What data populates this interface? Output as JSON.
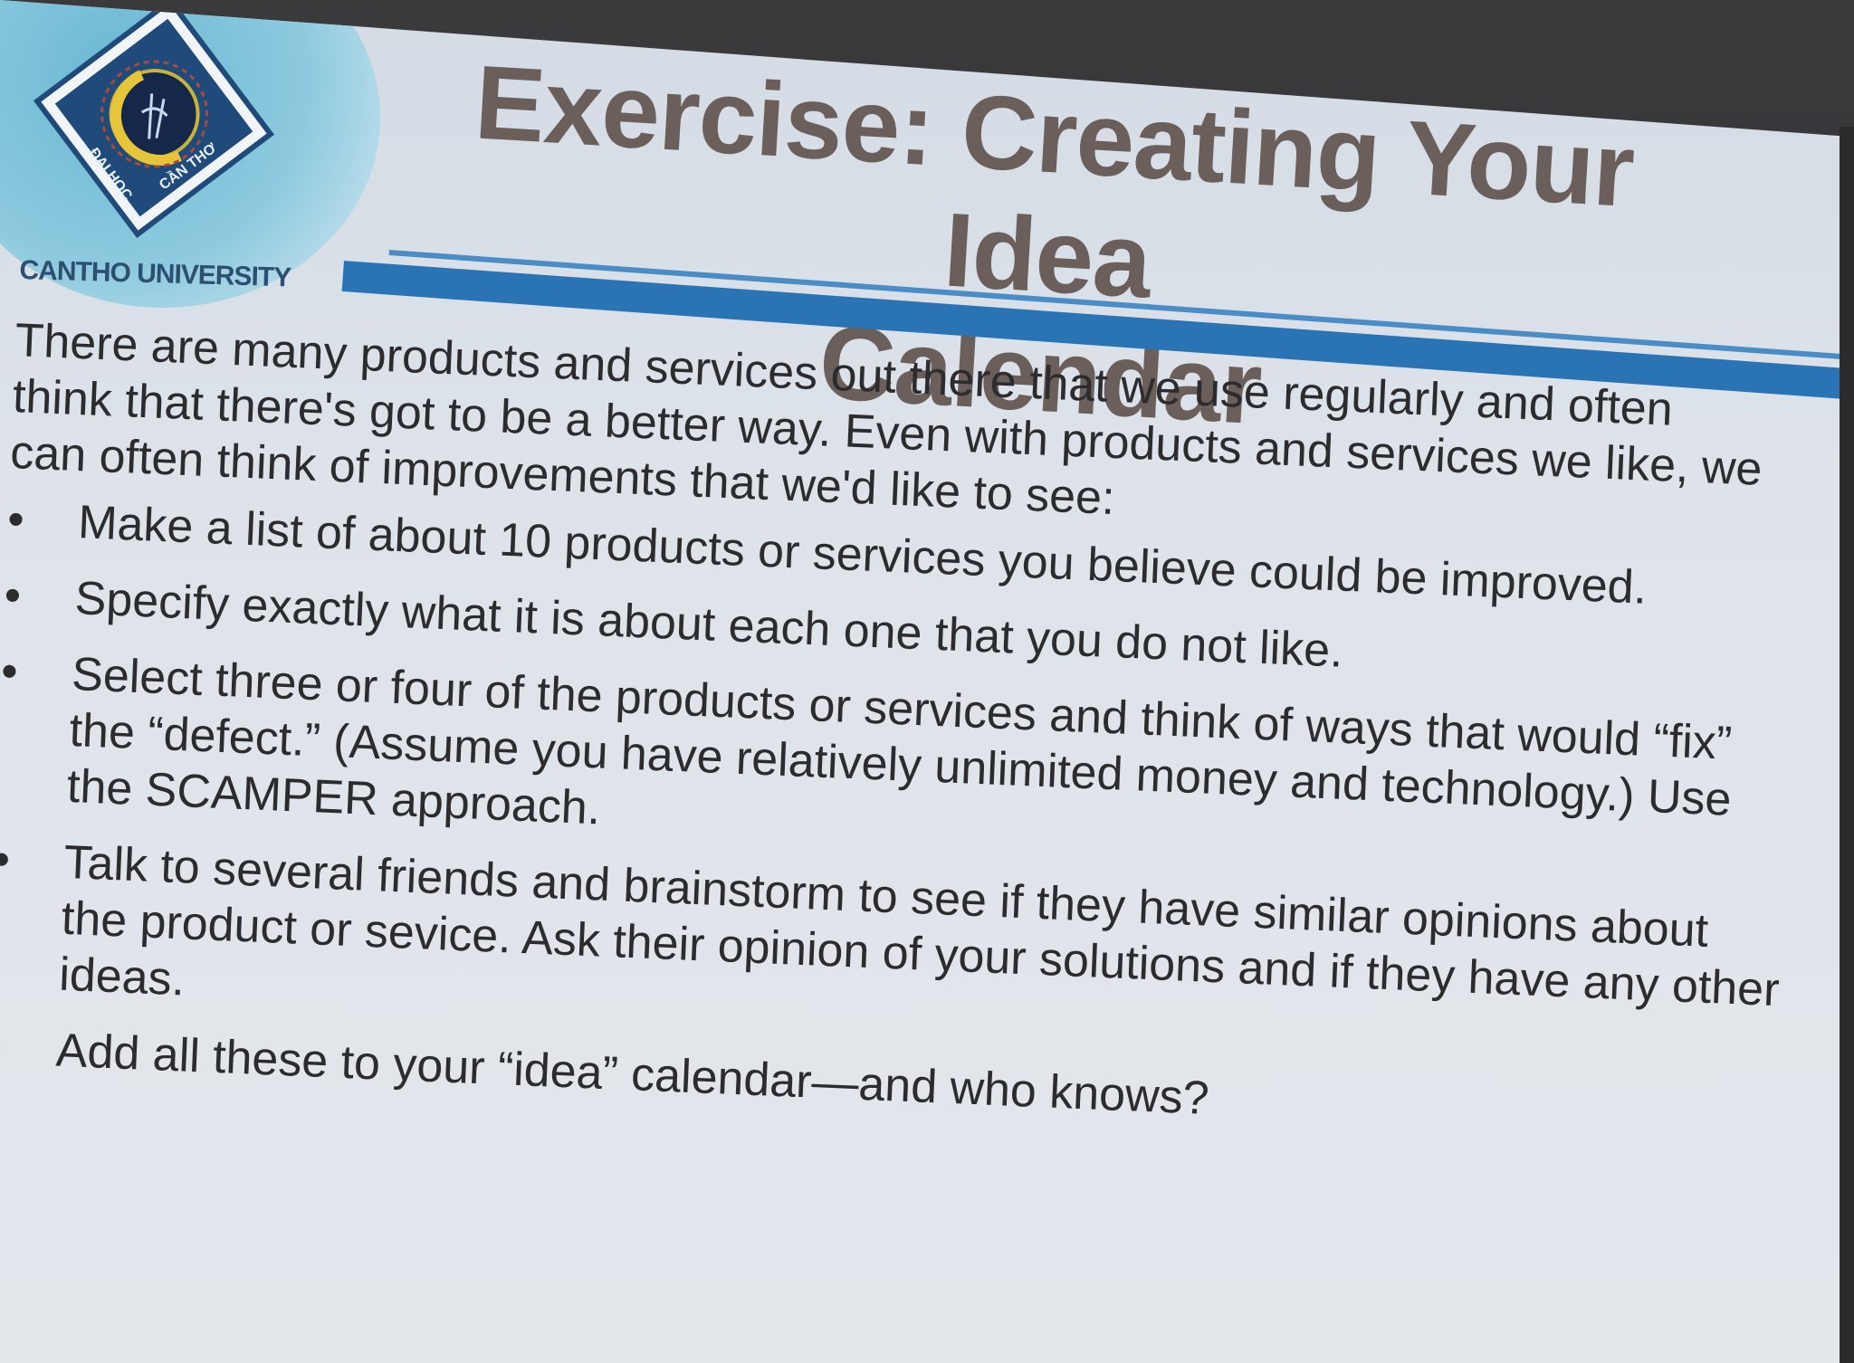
{
  "slide": {
    "title_line1": "Exercise: Creating Your Idea",
    "title_line2": "Calendar",
    "university": "CANTHO UNIVERSITY",
    "logo_text_left": "ĐẠI HỌC",
    "logo_text_right": "CẦN THƠ",
    "intro": "There are many products and services out there that we use regularly and often think that there's got to be a better way. Even with products and services we like, we can often think of improvements that we'd like to see:",
    "bullets": [
      "Make a list of about 10 products or services you believe could be improved.",
      "Specify exactly what it is about each one that you do not like.",
      "Select three or four of the products or services and think of ways that would “fix” the “defect.” (Assume you have relatively unlimited money and technology.) Use the SCAMPER approach.",
      "Talk to several friends and brainstorm to see if they have similar opinions about the product or sevice. Ask their opinion of your solutions and if they have any other ideas.",
      "Add all these to your “idea” calendar—and who knows?"
    ],
    "bullet_symbol": "•"
  },
  "colors": {
    "title": "#6b5f5b",
    "band": "#2a74b5",
    "logo_circle": "#8ecadf",
    "body_text": "#2c2c2e"
  },
  "icons": {
    "logo": "university-emblem-icon"
  }
}
